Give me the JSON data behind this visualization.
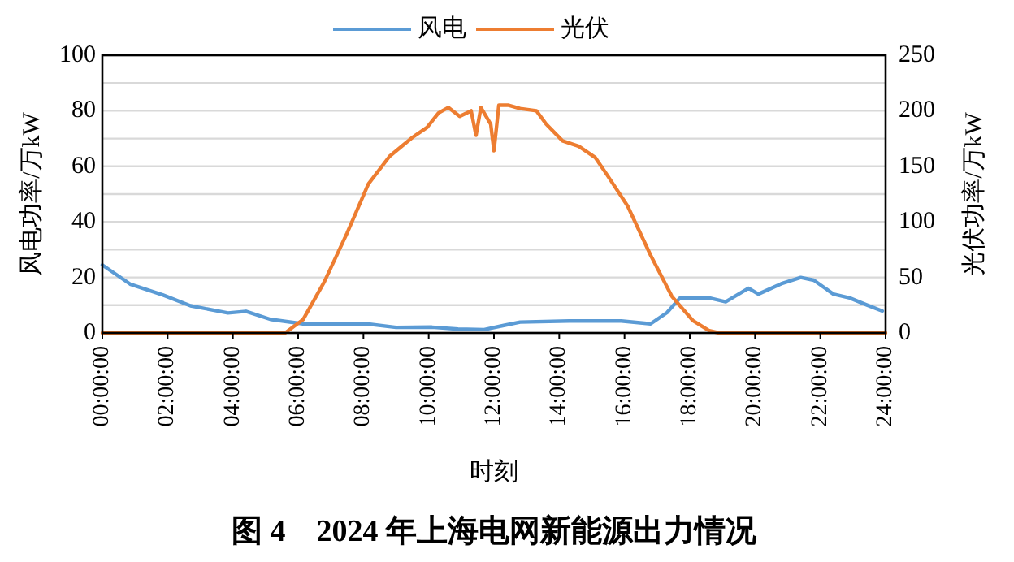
{
  "chart_data": {
    "type": "line",
    "title": "图 4　2024 年上海电网新能源出力情况",
    "xlabel": "时刻",
    "ylabel": "风电功率/万kW",
    "y2label": "光伏功率/万kW",
    "xlim": [
      0,
      24
    ],
    "xticks": [
      {
        "value": 0,
        "label": "00:00:00"
      },
      {
        "value": 2,
        "label": "02:00:00"
      },
      {
        "value": 4,
        "label": "04:00:00"
      },
      {
        "value": 6,
        "label": "06:00:00"
      },
      {
        "value": 8,
        "label": "08:00:00"
      },
      {
        "value": 10,
        "label": "10:00:00"
      },
      {
        "value": 12,
        "label": "12:00:00"
      },
      {
        "value": 14,
        "label": "14:00:00"
      },
      {
        "value": 16,
        "label": "16:00:00"
      },
      {
        "value": 18,
        "label": "18:00:00"
      },
      {
        "value": 20,
        "label": "20:00:00"
      },
      {
        "value": 22,
        "label": "22:00:00"
      },
      {
        "value": 24,
        "label": "24:00:00"
      }
    ],
    "ylim": [
      0,
      100
    ],
    "yticks": [
      0,
      {
        "value": 10,
        "label": null
      },
      20,
      {
        "value": 30,
        "label": null
      },
      40,
      {
        "value": 50,
        "label": null
      },
      60,
      {
        "value": 70,
        "label": null
      },
      80,
      {
        "value": 90,
        "label": null
      },
      100
    ],
    "y2lim": [
      0,
      250
    ],
    "y2ticks": [
      0,
      50,
      100,
      150,
      200,
      250
    ],
    "grid": "y",
    "legend": "top",
    "series": [
      {
        "name": "风电",
        "color": "#5b9bd5",
        "x": [
          0,
          0.85,
          1.85,
          2.7,
          3.85,
          4.4,
          5.15,
          6.15,
          8.1,
          9.0,
          10.1,
          10.9,
          11.7,
          12.3,
          12.8,
          14.3,
          15.9,
          16.8,
          17.3,
          17.7,
          18.6,
          19.1,
          19.8,
          20.1,
          20.8,
          21.4,
          21.8,
          22.4,
          22.9,
          23.4,
          23.9
        ],
        "values": [
          24.5,
          17.6,
          13.7,
          9.8,
          7.2,
          7.8,
          4.9,
          3.3,
          3.3,
          2,
          2.1,
          1.4,
          1.2,
          2.7,
          3.9,
          4.3,
          4.3,
          3.3,
          7.3,
          12.6,
          12.6,
          11.2,
          16.1,
          14,
          17.7,
          20,
          19,
          14,
          12.6,
          10.2,
          7.9
        ]
      },
      {
        "name": "光伏",
        "color": "#ed7d31",
        "axis": "y2",
        "x": [
          0,
          5.6,
          6.15,
          6.8,
          7.5,
          8.15,
          8.8,
          9.5,
          9.95,
          10.3,
          10.6,
          10.95,
          11.3,
          11.45,
          11.6,
          11.9,
          12.0,
          12.15,
          12.45,
          12.8,
          13.3,
          13.6,
          14.1,
          14.6,
          15.1,
          15.45,
          16.1,
          16.8,
          17.45,
          18.1,
          18.6,
          18.9,
          24
        ],
        "values": [
          0,
          0,
          12,
          46,
          90,
          134,
          159,
          176,
          185,
          198,
          203,
          195,
          200,
          178,
          203,
          188,
          164,
          205,
          205,
          202,
          200,
          188,
          173,
          168,
          158,
          143,
          114,
          70,
          33,
          11,
          2,
          0,
          0
        ]
      }
    ]
  }
}
